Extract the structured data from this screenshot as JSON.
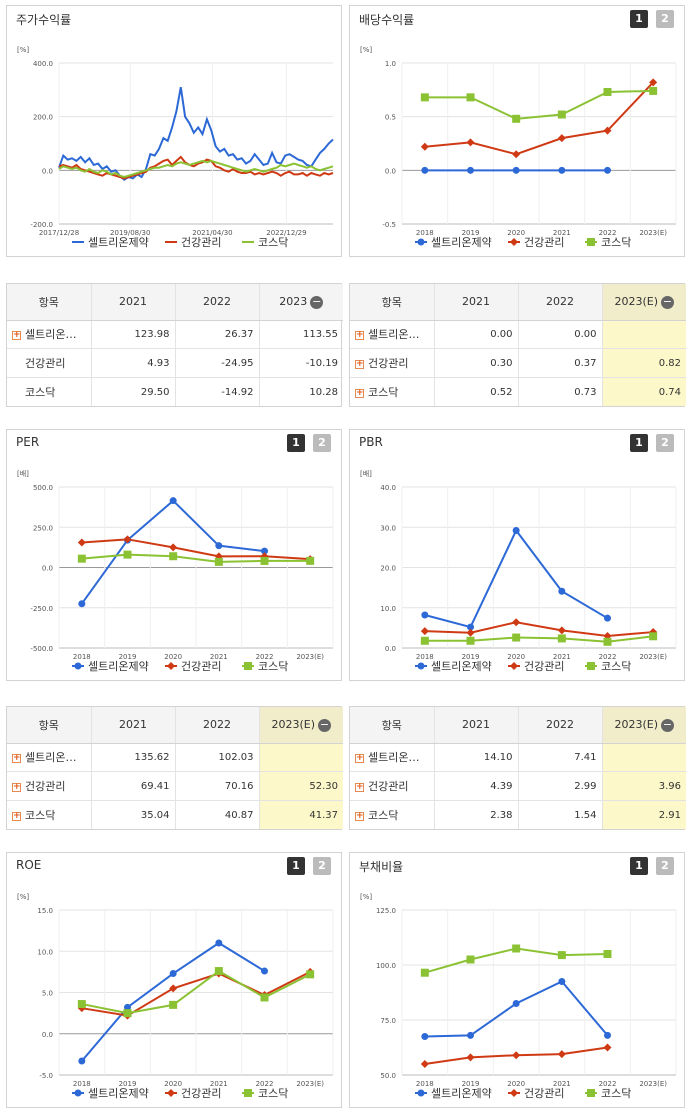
{
  "colors": {
    "s1": "#2d69d6",
    "s2": "#cf3a14",
    "s3": "#8bc233"
  },
  "legend": [
    "셀트리온제약",
    "건강관리",
    "코스닥"
  ],
  "charts": [
    {
      "id": "stock",
      "title": "주가수익률",
      "unit": "[%]",
      "pager": false,
      "chart_data": {
        "type": "line",
        "xticks": [
          "2017/12/28",
          "2019/08/30",
          "2021/04/30",
          "2022/12/29"
        ],
        "xtick_pos": [
          0,
          0.26,
          0.56,
          0.83
        ],
        "ylim": [
          -200,
          400
        ],
        "yticks": [
          "400.0",
          "200.0",
          "0.0",
          "-200.0"
        ],
        "ytick_vals": [
          400,
          200,
          0,
          -200
        ],
        "series": [
          {
            "name": "셀트리온제약",
            "values": [
              10,
              55,
              40,
              45,
              35,
              50,
              30,
              45,
              20,
              25,
              5,
              15,
              -5,
              0,
              -20,
              -35,
              -25,
              -30,
              -15,
              -25,
              5,
              60,
              55,
              80,
              120,
              110,
              160,
              220,
              310,
              200,
              175,
              140,
              160,
              135,
              190,
              150,
              90,
              70,
              80,
              55,
              60,
              40,
              45,
              25,
              35,
              60,
              40,
              20,
              25,
              65,
              30,
              25,
              55,
              60,
              50,
              40,
              35,
              20,
              15,
              40,
              65,
              80,
              100,
              115
            ]
          },
          {
            "name": "건강관리",
            "values": [
              15,
              20,
              15,
              10,
              20,
              5,
              0,
              -5,
              -10,
              -15,
              -20,
              -10,
              -15,
              -20,
              -25,
              -30,
              -25,
              -20,
              -15,
              -10,
              -5,
              10,
              15,
              25,
              35,
              40,
              20,
              35,
              50,
              30,
              20,
              15,
              25,
              30,
              40,
              35,
              15,
              10,
              0,
              -5,
              5,
              -5,
              -10,
              -10,
              -5,
              -15,
              -10,
              -15,
              -10,
              -5,
              -10,
              -20,
              -10,
              -5,
              -15,
              -15,
              -10,
              -20,
              -10,
              -15,
              -20,
              -10,
              -15,
              -10
            ]
          },
          {
            "name": "코스닥",
            "values": [
              5,
              15,
              10,
              5,
              10,
              0,
              -5,
              5,
              -5,
              -10,
              0,
              -5,
              -15,
              -10,
              -20,
              -25,
              -20,
              -15,
              -10,
              -5,
              0,
              5,
              10,
              10,
              15,
              20,
              15,
              25,
              30,
              25,
              20,
              25,
              30,
              35,
              30,
              35,
              30,
              25,
              20,
              15,
              10,
              5,
              0,
              -5,
              0,
              5,
              0,
              -5,
              0,
              5,
              10,
              20,
              15,
              20,
              25,
              20,
              15,
              10,
              15,
              5,
              0,
              5,
              10,
              15
            ]
          }
        ]
      }
    },
    {
      "id": "dividend",
      "title": "배당수익률",
      "unit": "[%]",
      "pager": true,
      "chart_data": {
        "type": "line",
        "categories": [
          "2018",
          "2019",
          "2020",
          "2021",
          "2022",
          "2023(E)"
        ],
        "ylim": [
          -0.5,
          1.0
        ],
        "yticks": [
          "1.0",
          "0.5",
          "0.0",
          "-0.5"
        ],
        "ytick_vals": [
          1.0,
          0.5,
          0.0,
          -0.5
        ],
        "series": [
          {
            "name": "셀트리온제약",
            "values": [
              0.0,
              0.0,
              0.0,
              0.0,
              0.0,
              null
            ]
          },
          {
            "name": "건강관리",
            "values": [
              0.22,
              0.26,
              0.15,
              0.3,
              0.37,
              0.82
            ]
          },
          {
            "name": "코스닥",
            "values": [
              0.68,
              0.68,
              0.48,
              0.52,
              0.73,
              0.74
            ]
          }
        ]
      }
    },
    {
      "id": "per",
      "title": "PER",
      "unit": "[배]",
      "pager": true,
      "chart_data": {
        "type": "line",
        "categories": [
          "2018",
          "2019",
          "2020",
          "2021",
          "2022",
          "2023(E)"
        ],
        "ylim": [
          -500,
          500
        ],
        "yticks": [
          "500.0",
          "250.0",
          "0.0",
          "-250.0",
          "-500.0"
        ],
        "ytick_vals": [
          500,
          250,
          0,
          -250,
          -500
        ],
        "series": [
          {
            "name": "셀트리온제약",
            "values": [
              -225,
              170,
              415,
              135.62,
              102.03,
              null
            ]
          },
          {
            "name": "건강관리",
            "values": [
              155,
              175,
              125,
              69.41,
              70.16,
              52.3
            ]
          },
          {
            "name": "코스닥",
            "values": [
              55,
              80,
              70,
              35.04,
              40.87,
              41.37
            ]
          }
        ]
      }
    },
    {
      "id": "pbr",
      "title": "PBR",
      "unit": "[배]",
      "pager": true,
      "chart_data": {
        "type": "line",
        "categories": [
          "2018",
          "2019",
          "2020",
          "2021",
          "2022",
          "2023(E)"
        ],
        "ylim": [
          0,
          40
        ],
        "yticks": [
          "40.0",
          "30.0",
          "20.0",
          "10.0",
          "0.0"
        ],
        "ytick_vals": [
          40,
          30,
          20,
          10,
          0
        ],
        "series": [
          {
            "name": "셀트리온제약",
            "values": [
              8.2,
              5.2,
              29.2,
              14.1,
              7.41,
              null
            ]
          },
          {
            "name": "건강관리",
            "values": [
              4.2,
              3.8,
              6.4,
              4.39,
              2.99,
              3.96
            ]
          },
          {
            "name": "코스닥",
            "values": [
              1.8,
              1.8,
              2.6,
              2.38,
              1.54,
              2.91
            ]
          }
        ]
      }
    },
    {
      "id": "roe",
      "title": "ROE",
      "unit": "[%]",
      "pager": true,
      "chart_data": {
        "type": "line",
        "categories": [
          "2018",
          "2019",
          "2020",
          "2021",
          "2022",
          "2023(E)"
        ],
        "ylim": [
          -5,
          15
        ],
        "yticks": [
          "15.0",
          "10.0",
          "5.0",
          "0.0",
          "-5.0"
        ],
        "ytick_vals": [
          15,
          10,
          5,
          0,
          -5
        ],
        "series": [
          {
            "name": "셀트리온제약",
            "values": [
              -3.3,
              3.2,
              7.3,
              11.0,
              7.6,
              null
            ]
          },
          {
            "name": "건강관리",
            "values": [
              3.1,
              2.2,
              5.5,
              7.3,
              4.7,
              7.5
            ]
          },
          {
            "name": "코스닥",
            "values": [
              3.6,
              2.5,
              3.5,
              7.6,
              4.4,
              7.2
            ]
          }
        ]
      }
    },
    {
      "id": "debt",
      "title": "부채비율",
      "unit": "[%]",
      "pager": true,
      "chart_data": {
        "type": "line",
        "categories": [
          "2018",
          "2019",
          "2020",
          "2021",
          "2022",
          "2023(E)"
        ],
        "ylim": [
          50,
          125
        ],
        "yticks": [
          "125.0",
          "100.0",
          "75.0",
          "50.0"
        ],
        "ytick_vals": [
          125,
          100,
          75,
          50
        ],
        "series": [
          {
            "name": "셀트리온제약",
            "values": [
              67.5,
              68,
              82.5,
              92.5,
              68,
              null
            ]
          },
          {
            "name": "건강관리",
            "values": [
              55,
              58,
              59,
              59.5,
              62.5,
              null
            ]
          },
          {
            "name": "코스닥",
            "values": [
              96.5,
              102.5,
              107.5,
              104.5,
              105,
              null
            ]
          }
        ]
      }
    }
  ],
  "tables": [
    {
      "id": "t1",
      "headers": [
        "항목",
        "2021",
        "2022",
        "2023"
      ],
      "minus": true,
      "hlcol": false,
      "rows": [
        [
          "셀트리온…",
          "123.98",
          "26.37",
          "113.55"
        ],
        [
          "건강관리",
          "4.93",
          "-24.95",
          "-10.19"
        ],
        [
          "코스닥",
          "29.50",
          "-14.92",
          "10.28"
        ]
      ],
      "plus": [
        true,
        false,
        false
      ]
    },
    {
      "id": "t2",
      "headers": [
        "항목",
        "2021",
        "2022",
        "2023(E)"
      ],
      "minus": true,
      "hlcol": true,
      "rows": [
        [
          "셀트리온…",
          "0.00",
          "0.00",
          ""
        ],
        [
          "건강관리",
          "0.30",
          "0.37",
          "0.82"
        ],
        [
          "코스닥",
          "0.52",
          "0.73",
          "0.74"
        ]
      ],
      "plus": [
        true,
        true,
        true
      ]
    },
    {
      "id": "t3",
      "headers": [
        "항목",
        "2021",
        "2022",
        "2023(E)"
      ],
      "minus": true,
      "hlcol": true,
      "rows": [
        [
          "셀트리온…",
          "135.62",
          "102.03",
          ""
        ],
        [
          "건강관리",
          "69.41",
          "70.16",
          "52.30"
        ],
        [
          "코스닥",
          "35.04",
          "40.87",
          "41.37"
        ]
      ],
      "plus": [
        true,
        true,
        true
      ]
    },
    {
      "id": "t4",
      "headers": [
        "항목",
        "2021",
        "2022",
        "2023(E)"
      ],
      "minus": true,
      "hlcol": true,
      "rows": [
        [
          "셀트리온…",
          "14.10",
          "7.41",
          ""
        ],
        [
          "건강관리",
          "4.39",
          "2.99",
          "3.96"
        ],
        [
          "코스닥",
          "2.38",
          "1.54",
          "2.91"
        ]
      ],
      "plus": [
        true,
        true,
        true
      ]
    }
  ],
  "pager_labels": [
    "1",
    "2"
  ]
}
